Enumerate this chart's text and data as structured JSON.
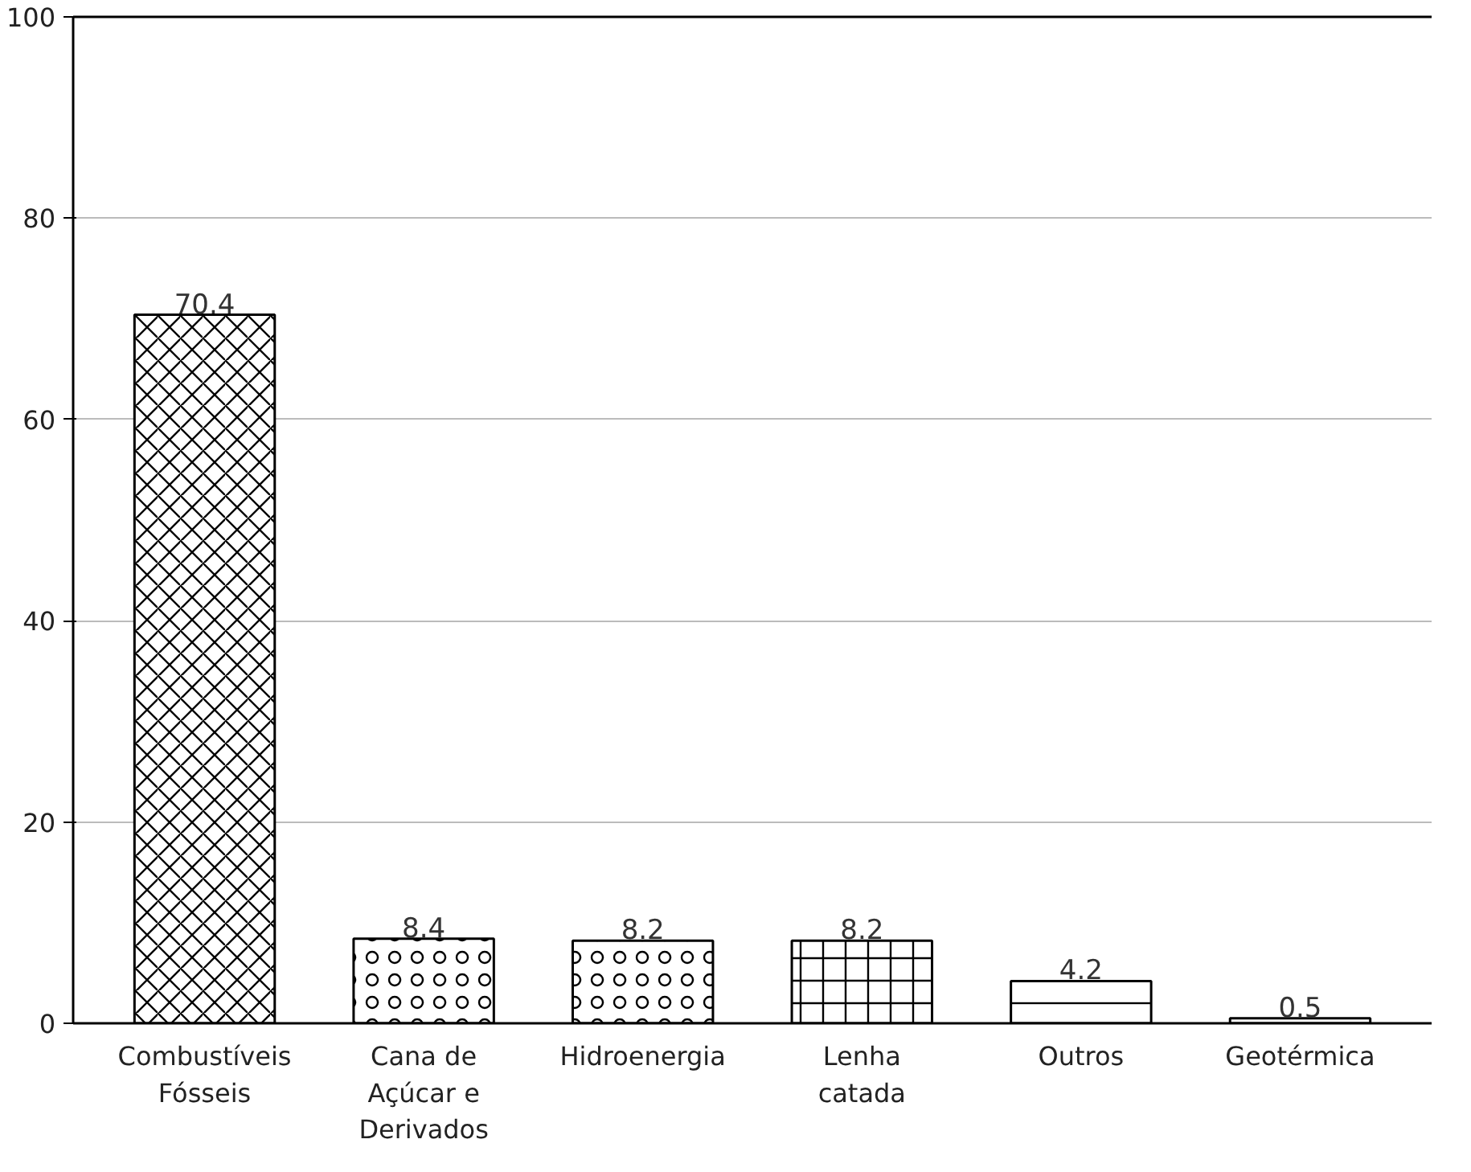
{
  "chart_data": {
    "type": "bar",
    "categories": [
      "Combustíveis Fósseis",
      "Cana de Açúcar e Derivados",
      "Hidroenergia",
      "Lenha catada",
      "Outros",
      "Geotérmica"
    ],
    "values": [
      70.4,
      8.4,
      8.2,
      8.2,
      4.2,
      0.5
    ],
    "colors": [
      "#ffffff",
      "#ffffff",
      "#ffffff",
      "#ffffff",
      "#ffffff",
      "#ffffff"
    ],
    "ylim": [
      0,
      100
    ],
    "yticks": [
      0,
      20,
      40,
      60,
      80,
      100
    ],
    "grid": "y",
    "data_labels": true
  }
}
